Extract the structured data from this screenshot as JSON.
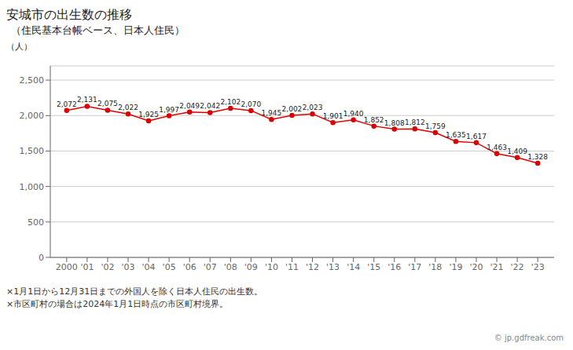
{
  "chart_data": {
    "type": "line",
    "title": "安城市の出生数の推移",
    "subtitle": "（住民基本台帳ベース、日本人住民）",
    "ylabel": "（人）",
    "annotations": [
      "×1月1日から12月31日までの外国人を除く日本人住民の出生数。",
      "×市区町村の場合は2024年1月1日時点の市区町村境界。",
      "© jp.gdfreak.com"
    ],
    "x": [
      2000,
      2001,
      2002,
      2003,
      2004,
      2005,
      2006,
      2007,
      2008,
      2009,
      2010,
      2011,
      2012,
      2013,
      2014,
      2015,
      2016,
      2017,
      2018,
      2019,
      2020,
      2021,
      2022,
      2023
    ],
    "values": [
      2072,
      2131,
      2075,
      2022,
      1925,
      1997,
      2049,
      2042,
      2102,
      2070,
      1945,
      2002,
      2023,
      1901,
      1940,
      1852,
      1808,
      1812,
      1759,
      1635,
      1617,
      1463,
      1409,
      1328
    ],
    "value_labels": [
      "2,072",
      "2,131",
      "2,075",
      "2,022",
      "1,925",
      "1,997",
      "2,049",
      "2,042",
      "2,102",
      "2,070",
      "1,945",
      "2,002",
      "2,023",
      "1,901",
      "1,940",
      "1,852",
      "1,808",
      "1,812",
      "1,759",
      "1,635",
      "1,617",
      "1,463",
      "1,409",
      "1,328"
    ],
    "data_labels": true,
    "color": "#dd0000",
    "marker": "circle",
    "xlim": [
      1999.2,
      2023.8
    ],
    "xticks": [
      2000,
      {
        "value": 2001,
        "label": "'01"
      },
      {
        "value": 2002,
        "label": "'02"
      },
      {
        "value": 2003,
        "label": "'03"
      },
      {
        "value": 2004,
        "label": "'04"
      },
      {
        "value": 2005,
        "label": "'05"
      },
      {
        "value": 2006,
        "label": "'06"
      },
      {
        "value": 2007,
        "label": "'07"
      },
      {
        "value": 2008,
        "label": "'08"
      },
      {
        "value": 2009,
        "label": "'09"
      },
      {
        "value": 2010,
        "label": "'10"
      },
      {
        "value": 2011,
        "label": "'11"
      },
      {
        "value": 2012,
        "label": "'12"
      },
      {
        "value": 2013,
        "label": "'13"
      },
      {
        "value": 2014,
        "label": "'14"
      },
      {
        "value": 2015,
        "label": "'15"
      },
      {
        "value": 2016,
        "label": "'16"
      },
      {
        "value": 2017,
        "label": "'17"
      },
      {
        "value": 2018,
        "label": "'18"
      },
      {
        "value": 2019,
        "label": "'19"
      },
      {
        "value": 2020,
        "label": "'20"
      },
      {
        "value": 2021,
        "label": "'21"
      },
      {
        "value": 2022,
        "label": "'22"
      },
      {
        "value": 2023,
        "label": "'23"
      }
    ],
    "ylim": [
      0,
      2700
    ],
    "yticks": [
      0,
      500,
      {
        "value": 1000,
        "label": "1,000"
      },
      {
        "value": 1500,
        "label": "1,500"
      },
      {
        "value": 2000,
        "label": "2,000"
      },
      {
        "value": 2500,
        "label": "2,500"
      }
    ],
    "grid": true
  }
}
